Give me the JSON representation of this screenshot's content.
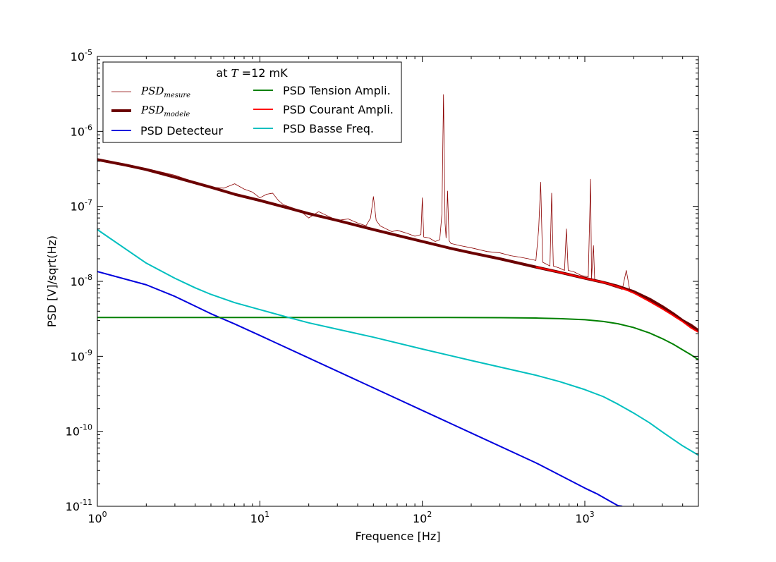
{
  "chart_data": {
    "type": "line",
    "xscale": "log",
    "yscale": "log",
    "xlabel": "Frequence [Hz]",
    "ylabel": "PSD [V]/sqrt(Hz)",
    "xlim": [
      1,
      5000
    ],
    "ylim": [
      1e-11,
      1e-05
    ],
    "x_ticks": [
      {
        "value": 1,
        "base": "10",
        "exp": "0"
      },
      {
        "value": 10,
        "base": "10",
        "exp": "1"
      },
      {
        "value": 100,
        "base": "10",
        "exp": "2"
      },
      {
        "value": 1000,
        "base": "10",
        "exp": "3"
      }
    ],
    "y_ticks": [
      {
        "value": 1e-05,
        "base": "10",
        "exp": "-5"
      },
      {
        "value": 1e-06,
        "base": "10",
        "exp": "-6"
      },
      {
        "value": 1e-07,
        "base": "10",
        "exp": "-7"
      },
      {
        "value": 1e-08,
        "base": "10",
        "exp": "-8"
      },
      {
        "value": 1e-09,
        "base": "10",
        "exp": "-9"
      },
      {
        "value": 1e-10,
        "base": "10",
        "exp": "-10"
      },
      {
        "value": 1e-11,
        "base": "10",
        "exp": "-11"
      }
    ],
    "legend": {
      "title_prefix": "at ",
      "title_var": "T",
      "title_suffix": " =12 mK",
      "placement": "upper-left"
    },
    "series": [
      {
        "id": "mesure",
        "name": "PSD",
        "name_sub": "mesure",
        "color": "#8b0000",
        "width": 0.8,
        "x": [
          1,
          2,
          3,
          4,
          5,
          6,
          7,
          8,
          9,
          10,
          11,
          12,
          13,
          14,
          16,
          18,
          20,
          23,
          26,
          30,
          35,
          40,
          45,
          48,
          50,
          52,
          55,
          60,
          65,
          70,
          80,
          90,
          98,
          100,
          102,
          110,
          120,
          128,
          132,
          135,
          138,
          140,
          143,
          146,
          150,
          170,
          200,
          250,
          300,
          350,
          400,
          450,
          500,
          520,
          535,
          550,
          580,
          610,
          625,
          640,
          700,
          750,
          770,
          790,
          850,
          950,
          1050,
          1085,
          1100,
          1130,
          1150,
          1300,
          1500,
          1700,
          1800,
          1900,
          2100,
          2300,
          2500,
          2800,
          3200,
          3600,
          4000,
          4500,
          5000
        ],
        "y": [
          4.3e-07,
          3.2e-07,
          2.6e-07,
          2.1e-07,
          1.8e-07,
          1.75e-07,
          2e-07,
          1.7e-07,
          1.55e-07,
          1.3e-07,
          1.45e-07,
          1.5e-07,
          1.2e-07,
          1.05e-07,
          9.5e-08,
          8.5e-08,
          7e-08,
          8.5e-08,
          7.5e-08,
          6.5e-08,
          6.8e-08,
          6e-08,
          5.5e-08,
          7e-08,
          1.35e-07,
          6.5e-08,
          5.5e-08,
          5e-08,
          4.6e-08,
          4.8e-08,
          4.4e-08,
          4e-08,
          4.2e-08,
          1.3e-07,
          3.9e-08,
          3.8e-08,
          3.4e-08,
          3.6e-08,
          8e-08,
          3.1e-06,
          6e-08,
          3.8e-08,
          1.6e-07,
          3.5e-08,
          3.2e-08,
          3e-08,
          2.8e-08,
          2.5e-08,
          2.4e-08,
          2.2e-08,
          2.1e-08,
          2e-08,
          1.9e-08,
          5e-08,
          2.1e-07,
          1.8e-08,
          1.7e-08,
          1.6e-08,
          1.5e-07,
          1.6e-08,
          1.5e-08,
          1.4e-08,
          5e-08,
          1.4e-08,
          1.35e-08,
          1.2e-08,
          1.15e-08,
          2.3e-07,
          1.1e-08,
          3e-08,
          1.05e-08,
          9.5e-09,
          8.5e-09,
          7.8e-09,
          1.4e-08,
          7.2e-09,
          6.6e-09,
          6e-09,
          5.6e-09,
          4.8e-09,
          4e-09,
          3.3e-09,
          2.9e-09,
          2.7e-09,
          2.3e-09
        ]
      },
      {
        "id": "modele",
        "name": "PSD",
        "name_sub": "modele",
        "color": "#6b0000",
        "width": 4,
        "x": [
          1,
          1.5,
          2,
          3,
          5,
          7,
          10,
          15,
          20,
          30,
          50,
          70,
          100,
          150,
          200,
          300,
          500,
          700,
          1000,
          1300,
          1600,
          2000,
          2500,
          3000,
          3500,
          4000,
          4500,
          5000
        ],
        "y": [
          4.2e-07,
          3.55e-07,
          3.1e-07,
          2.45e-07,
          1.8e-07,
          1.45e-07,
          1.2e-07,
          9.5e-08,
          8e-08,
          6.5e-08,
          4.9e-08,
          4.1e-08,
          3.4e-08,
          2.75e-08,
          2.4e-08,
          2e-08,
          1.55e-08,
          1.32e-08,
          1.1e-08,
          9.7e-09,
          8.6e-09,
          7.3e-09,
          5.8e-09,
          4.6e-09,
          3.7e-09,
          3e-09,
          2.6e-09,
          2.2e-09
        ]
      },
      {
        "id": "detecteur",
        "name": "PSD Detecteur",
        "color": "#0000dd",
        "width": 2,
        "x": [
          1,
          2,
          3,
          5,
          7,
          10,
          20,
          50,
          100,
          200,
          500,
          1000,
          1200,
          1400,
          1600,
          1700
        ],
        "y": [
          1.35e-08,
          9e-09,
          6.3e-09,
          3.7e-09,
          2.7e-09,
          1.9e-09,
          9.5e-10,
          3.8e-10,
          1.9e-10,
          9.5e-11,
          3.8e-11,
          1.75e-11,
          1.45e-11,
          1.2e-11,
          1.02e-11,
          1e-11
        ]
      },
      {
        "id": "tension",
        "name": "PSD Tension Ampli.",
        "color": "#008000",
        "width": 2,
        "x": [
          1,
          10,
          100,
          300,
          500,
          700,
          1000,
          1300,
          1600,
          2000,
          2500,
          3000,
          3500,
          4000,
          4500,
          5000
        ],
        "y": [
          3.3e-09,
          3.3e-09,
          3.3e-09,
          3.28e-09,
          3.24e-09,
          3.18e-09,
          3.08e-09,
          2.92e-09,
          2.72e-09,
          2.42e-09,
          2.05e-09,
          1.72e-09,
          1.45e-09,
          1.22e-09,
          1.05e-09,
          9e-10
        ]
      },
      {
        "id": "courant",
        "name": "PSD Courant Ampli.",
        "color": "#ff0000",
        "width": 2,
        "x": [
          500,
          700,
          1000,
          1300,
          1600,
          2000,
          2500,
          3000,
          3500,
          4000,
          4500,
          5000
        ],
        "y": [
          1.55e-08,
          1.32e-08,
          1.1e-08,
          9.7e-09,
          8.5e-09,
          7e-09,
          5.4e-09,
          4.3e-09,
          3.5e-09,
          2.9e-09,
          2.4e-09,
          2.1e-09
        ]
      },
      {
        "id": "basse",
        "name": "PSD Basse Freq.",
        "color": "#00bfbf",
        "width": 2,
        "x": [
          1,
          2,
          3,
          4,
          5,
          7,
          10,
          15,
          20,
          30,
          50,
          100,
          200,
          300,
          500,
          700,
          1000,
          1300,
          1600,
          2000,
          2500,
          3000,
          3500,
          4000,
          4500,
          5000
        ],
        "y": [
          4.9e-08,
          1.75e-08,
          1.1e-08,
          8.2e-09,
          6.7e-09,
          5.2e-09,
          4.2e-09,
          3.3e-09,
          2.8e-09,
          2.3e-09,
          1.8e-09,
          1.25e-09,
          8.8e-10,
          7.2e-10,
          5.6e-10,
          4.6e-10,
          3.6e-10,
          2.9e-10,
          2.3e-10,
          1.75e-10,
          1.3e-10,
          9.8e-11,
          7.8e-11,
          6.4e-11,
          5.5e-11,
          4.8e-11
        ]
      }
    ]
  }
}
